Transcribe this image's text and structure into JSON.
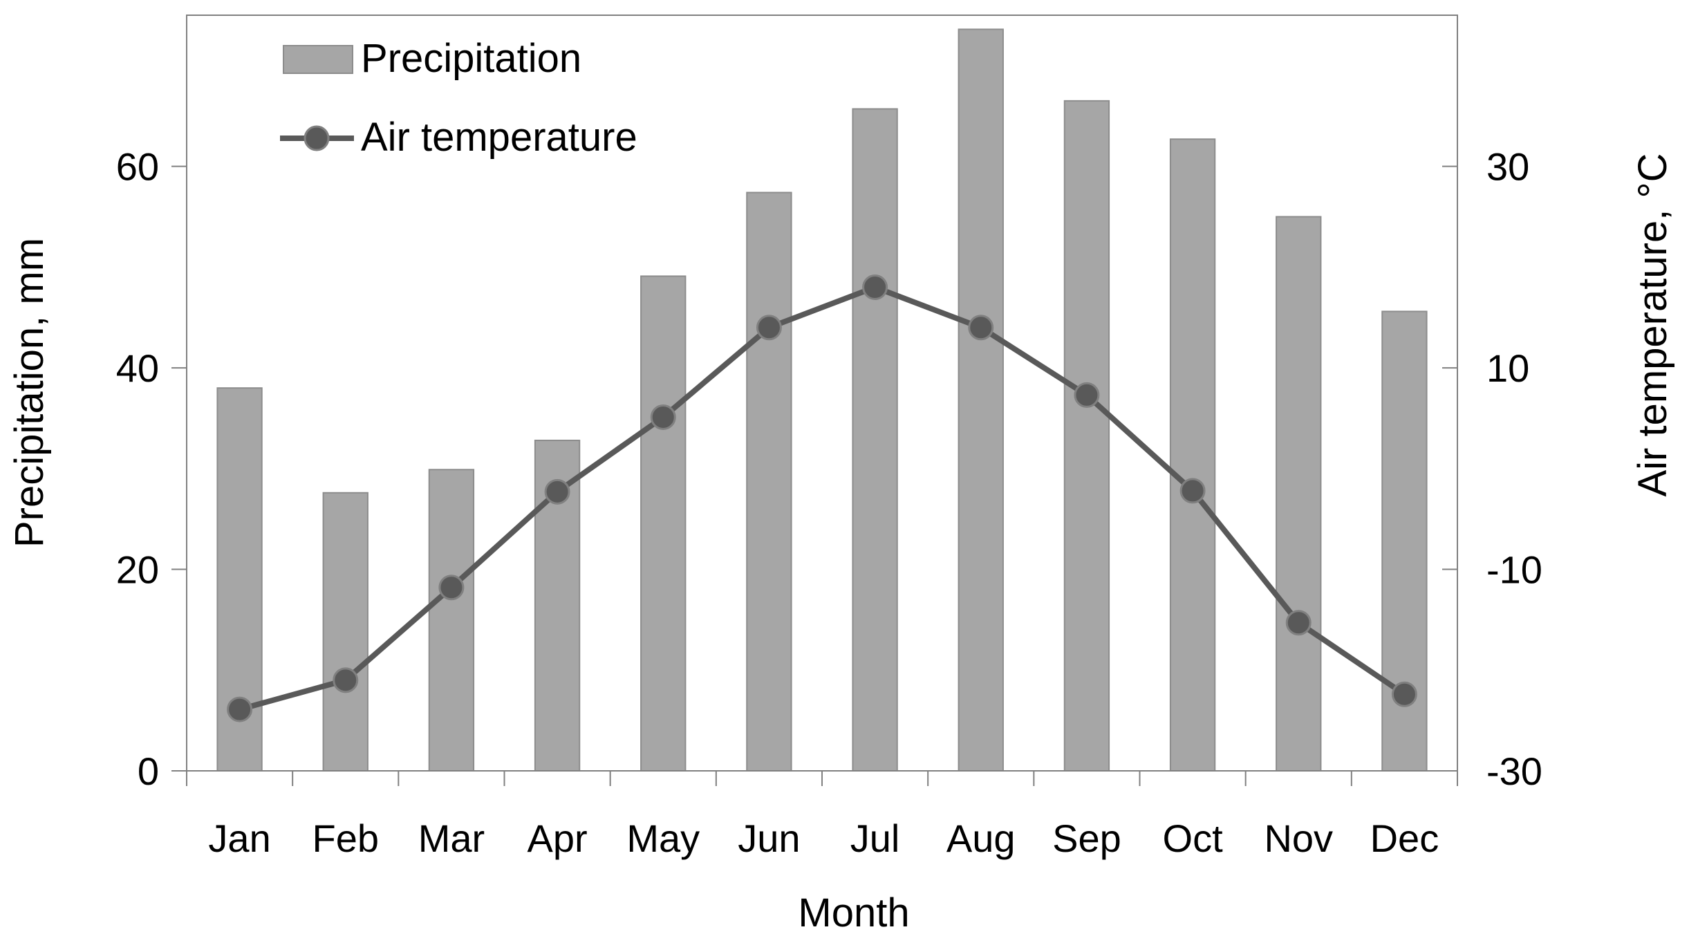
{
  "chart_data": {
    "type": "bar+line",
    "title": "",
    "xlabel": "Month",
    "ylabel": "Precipitation, mm",
    "y2label": "Air temperature, °C",
    "categories": [
      "Jan",
      "Feb",
      "Mar",
      "Apr",
      "May",
      "Jun",
      "Jul",
      "Aug",
      "Sep",
      "Oct",
      "Nov",
      "Dec"
    ],
    "ylim": [
      0,
      75
    ],
    "y2lim": [
      -30,
      45
    ],
    "yticks": [
      0,
      20,
      40,
      60
    ],
    "y2ticks": [
      -30,
      -10,
      10,
      30
    ],
    "series": [
      {
        "name": "Precipitation",
        "type": "bar",
        "axis": "left",
        "values": [
          38,
          27.6,
          29.9,
          32.8,
          49.1,
          57.4,
          65.7,
          73.6,
          66.5,
          62.7,
          55,
          45.6
        ]
      },
      {
        "name": "Air temperature",
        "type": "line",
        "axis": "right",
        "values": [
          -23.9,
          -21,
          -11.8,
          -2.3,
          5.1,
          14,
          18,
          14,
          7.3,
          -2.2,
          -15.3,
          -22.4
        ]
      }
    ],
    "legend_position": "top-left",
    "colors": {
      "bar": "#a6a6a6",
      "bar_edge": "#8c8c8c",
      "line": "#595959",
      "axis": "#808080"
    }
  }
}
